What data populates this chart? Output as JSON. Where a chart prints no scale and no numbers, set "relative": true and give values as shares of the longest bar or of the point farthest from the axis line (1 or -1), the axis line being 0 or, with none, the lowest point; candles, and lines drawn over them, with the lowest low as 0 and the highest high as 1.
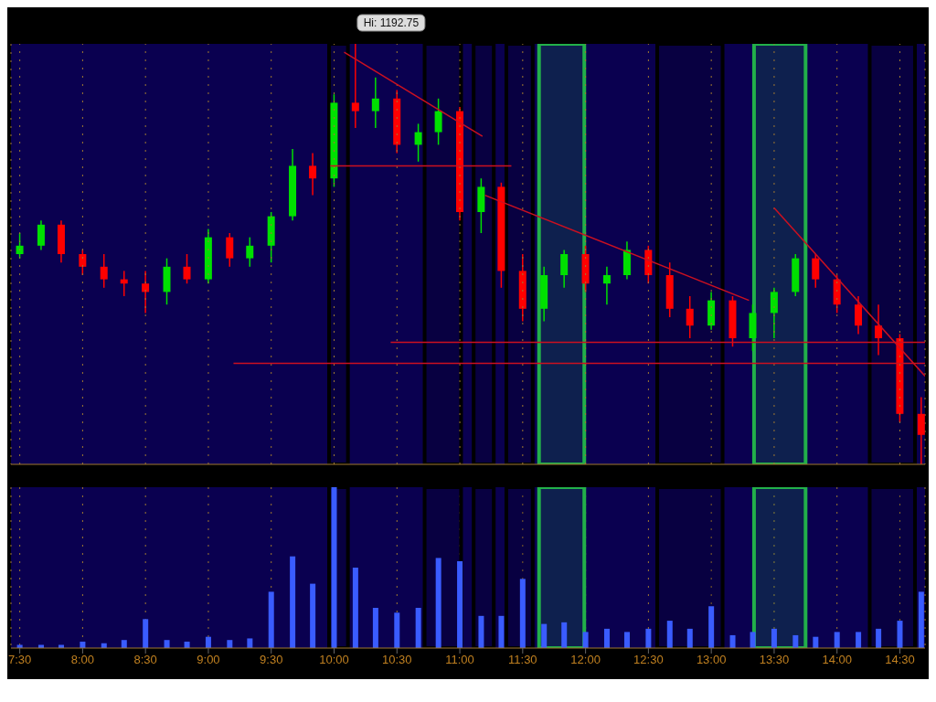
{
  "chart_data": [
    {
      "type": "candlestick",
      "relative": true,
      "xlim": [
        7.43,
        14.7
      ],
      "xticks": [
        7.5,
        8,
        8.5,
        9,
        9.5,
        10,
        10.5,
        11,
        11.5,
        12,
        12.5,
        13,
        13.5,
        14,
        14.5
      ],
      "tick_labels": false,
      "grid": "x",
      "x": [
        7.5,
        7.67,
        7.83,
        8,
        8.17,
        8.33,
        8.5,
        8.67,
        8.83,
        9,
        9.17,
        9.33,
        9.5,
        9.67,
        9.83,
        10,
        10.17,
        10.33,
        10.5,
        10.67,
        10.83,
        11,
        11.17,
        11.33,
        11.5,
        11.67,
        11.83,
        12,
        12.17,
        12.33,
        12.5,
        12.67,
        12.83,
        13,
        13.17,
        13.33,
        13.5,
        13.67,
        13.83,
        14,
        14.17,
        14.33,
        14.5,
        14.67
      ],
      "ohlc": [
        [
          0.5,
          0.55,
          0.49,
          0.52
        ],
        [
          0.52,
          0.58,
          0.51,
          0.57
        ],
        [
          0.57,
          0.58,
          0.48,
          0.5
        ],
        [
          0.5,
          0.51,
          0.45,
          0.47
        ],
        [
          0.47,
          0.5,
          0.42,
          0.44
        ],
        [
          0.44,
          0.46,
          0.4,
          0.43
        ],
        [
          0.43,
          0.46,
          0.36,
          0.41
        ],
        [
          0.41,
          0.49,
          0.38,
          0.47
        ],
        [
          0.47,
          0.5,
          0.43,
          0.44
        ],
        [
          0.44,
          0.56,
          0.43,
          0.54
        ],
        [
          0.54,
          0.55,
          0.47,
          0.49
        ],
        [
          0.49,
          0.54,
          0.47,
          0.52
        ],
        [
          0.52,
          0.6,
          0.48,
          0.59
        ],
        [
          0.59,
          0.75,
          0.58,
          0.71
        ],
        [
          0.71,
          0.74,
          0.64,
          0.68
        ],
        [
          0.68,
          0.88,
          0.66,
          0.86
        ],
        [
          0.86,
          1,
          0.8,
          0.84
        ],
        [
          0.84,
          0.92,
          0.8,
          0.87
        ],
        [
          0.87,
          0.89,
          0.74,
          0.76
        ],
        [
          0.76,
          0.81,
          0.72,
          0.79
        ],
        [
          0.79,
          0.87,
          0.76,
          0.84
        ],
        [
          0.84,
          0.85,
          0.58,
          0.6
        ],
        [
          0.6,
          0.68,
          0.55,
          0.66
        ],
        [
          0.66,
          0.67,
          0.42,
          0.46
        ],
        [
          0.46,
          0.5,
          0.34,
          0.37
        ],
        [
          0.37,
          0.47,
          0.34,
          0.45
        ],
        [
          0.45,
          0.51,
          0.42,
          0.5
        ],
        [
          0.5,
          0.52,
          0.41,
          0.43
        ],
        [
          0.43,
          0.47,
          0.38,
          0.45
        ],
        [
          0.45,
          0.53,
          0.44,
          0.51
        ],
        [
          0.51,
          0.52,
          0.43,
          0.45
        ],
        [
          0.45,
          0.48,
          0.35,
          0.37
        ],
        [
          0.37,
          0.4,
          0.3,
          0.33
        ],
        [
          0.33,
          0.41,
          0.32,
          0.39
        ],
        [
          0.39,
          0.4,
          0.28,
          0.3
        ],
        [
          0.3,
          0.38,
          0.27,
          0.36
        ],
        [
          0.36,
          0.42,
          0.3,
          0.41
        ],
        [
          0.41,
          0.5,
          0.4,
          0.49
        ],
        [
          0.49,
          0.5,
          0.42,
          0.44
        ],
        [
          0.44,
          0.45,
          0.36,
          0.38
        ],
        [
          0.38,
          0.4,
          0.31,
          0.33
        ],
        [
          0.33,
          0.38,
          0.26,
          0.3
        ],
        [
          0.3,
          0.31,
          0.1,
          0.12
        ],
        [
          0.12,
          0.16,
          0,
          0.07
        ]
      ],
      "colors": [
        "#00e000",
        "#00e000",
        "#ff0000",
        "#ff0000",
        "#ff0000",
        "#ff0000",
        "#ff0000",
        "#00e000",
        "#ff0000",
        "#00e000",
        "#ff0000",
        "#00e000",
        "#00e000",
        "#00e000",
        "#ff0000",
        "#00e000",
        "#ff0000",
        "#00e000",
        "#ff0000",
        "#00e000",
        "#00e000",
        "#ff0000",
        "#00e000",
        "#ff0000",
        "#ff0000",
        "#00e000",
        "#00e000",
        "#ff0000",
        "#00e000",
        "#00e000",
        "#ff0000",
        "#ff0000",
        "#ff0000",
        "#00e000",
        "#ff0000",
        "#00e000",
        "#00e000",
        "#00e000",
        "#ff0000",
        "#ff0000",
        "#ff0000",
        "#ff0000",
        "#ff0000",
        "#ff0000"
      ],
      "series": [
        {
          "type": "line",
          "color": "#cc1020",
          "x": [
            9.97,
            11.41
          ],
          "values": [
            0.71,
            0.71
          ]
        },
        {
          "type": "line",
          "color": "#cc1020",
          "x": [
            10.45,
            14.7
          ],
          "values": [
            0.29,
            0.29
          ]
        },
        {
          "type": "line",
          "color": "#cc1020",
          "x": [
            9.2,
            14.7
          ],
          "values": [
            0.24,
            0.24
          ]
        },
        {
          "type": "line",
          "color": "#cc1020",
          "x": [
            10.08,
            11.18
          ],
          "values": [
            0.98,
            0.78
          ]
        },
        {
          "type": "line",
          "color": "#cc1020",
          "x": [
            11.2,
            13.3
          ],
          "values": [
            0.64,
            0.39
          ]
        },
        {
          "type": "line",
          "color": "#cc1020",
          "x": [
            13.5,
            14.7
          ],
          "values": [
            0.61,
            0.21
          ]
        }
      ],
      "annotations": [
        {
          "text": "Hi: 1192.75",
          "x": 10.17,
          "y": 1
        }
      ],
      "bands": [
        {
          "axis": "x",
          "from": 9.96,
          "to": 10.11,
          "color": "#000000"
        },
        {
          "axis": "x",
          "from": 10.72,
          "to": 11.01,
          "color": "#000000"
        },
        {
          "axis": "x",
          "from": 11.11,
          "to": 11.27,
          "color": "#000000"
        },
        {
          "axis": "x",
          "from": 11.37,
          "to": 11.58,
          "color": "#000000"
        },
        {
          "axis": "x",
          "from": 11.63,
          "to": 11.99,
          "color": "#22b04a"
        },
        {
          "axis": "x",
          "from": 12.57,
          "to": 13.09,
          "color": "#000000"
        },
        {
          "axis": "x",
          "from": 13.34,
          "to": 13.75,
          "color": "#22b04a"
        },
        {
          "axis": "x",
          "from": 14.26,
          "to": 14.62,
          "color": "#000000"
        }
      ]
    },
    {
      "type": "bar",
      "relative": true,
      "color": "#3a5cff",
      "grid": "x",
      "bands": [
        {
          "axis": "x",
          "from": 9.96,
          "to": 10.11,
          "color": "#000000"
        },
        {
          "axis": "x",
          "from": 10.72,
          "to": 11.01,
          "color": "#000000"
        },
        {
          "axis": "x",
          "from": 11.11,
          "to": 11.27,
          "color": "#000000"
        },
        {
          "axis": "x",
          "from": 11.37,
          "to": 11.58,
          "color": "#000000"
        },
        {
          "axis": "x",
          "from": 11.63,
          "to": 11.99,
          "color": "#22b04a"
        },
        {
          "axis": "x",
          "from": 12.57,
          "to": 13.09,
          "color": "#000000"
        },
        {
          "axis": "x",
          "from": 13.34,
          "to": 13.75,
          "color": "#22b04a"
        },
        {
          "axis": "x",
          "from": 14.26,
          "to": 14.62,
          "color": "#000000"
        }
      ],
      "tick_labels": "x",
      "xlim": [
        7.43,
        14.7
      ],
      "xticks": [
        {
          "value": 7.5,
          "label": "7:30"
        },
        {
          "value": 8,
          "label": "8:00"
        },
        {
          "value": 8.5,
          "label": "8:30"
        },
        {
          "value": 9,
          "label": "9:00"
        },
        {
          "value": 9.5,
          "label": "9:30"
        },
        {
          "value": 10,
          "label": "10:00"
        },
        {
          "value": 10.5,
          "label": "10:30"
        },
        {
          "value": 11,
          "label": "11:00"
        },
        {
          "value": 11.5,
          "label": "11:30"
        },
        {
          "value": 12,
          "label": "12:00"
        },
        {
          "value": 12.5,
          "label": "12:30"
        },
        {
          "value": 13,
          "label": "13:00"
        },
        {
          "value": 13.5,
          "label": "13:30"
        },
        {
          "value": 14,
          "label": "14:00"
        },
        {
          "value": 14.5,
          "label": "14:30"
        }
      ],
      "x": [
        7.5,
        7.67,
        7.83,
        8,
        8.17,
        8.33,
        8.5,
        8.67,
        8.83,
        9,
        9.17,
        9.33,
        9.5,
        9.67,
        9.83,
        10,
        10.17,
        10.33,
        10.5,
        10.67,
        10.83,
        11,
        11.17,
        11.33,
        11.5,
        11.67,
        11.83,
        12,
        12.17,
        12.33,
        12.5,
        12.67,
        12.83,
        13,
        13.17,
        13.33,
        13.5,
        13.67,
        13.83,
        14,
        14.17,
        14.33,
        14.5,
        14.67
      ],
      "values": [
        0.02,
        0.02,
        0.02,
        0.04,
        0.03,
        0.05,
        0.18,
        0.05,
        0.04,
        0.07,
        0.05,
        0.06,
        0.35,
        0.57,
        0.4,
        1,
        0.5,
        0.25,
        0.22,
        0.25,
        0.56,
        0.54,
        0.2,
        0.2,
        0.43,
        0.15,
        0.16,
        0.1,
        0.12,
        0.1,
        0.12,
        0.17,
        0.12,
        0.26,
        0.08,
        0.1,
        0.12,
        0.08,
        0.07,
        0.1,
        0.1,
        0.12,
        0.17,
        0.35
      ]
    }
  ]
}
